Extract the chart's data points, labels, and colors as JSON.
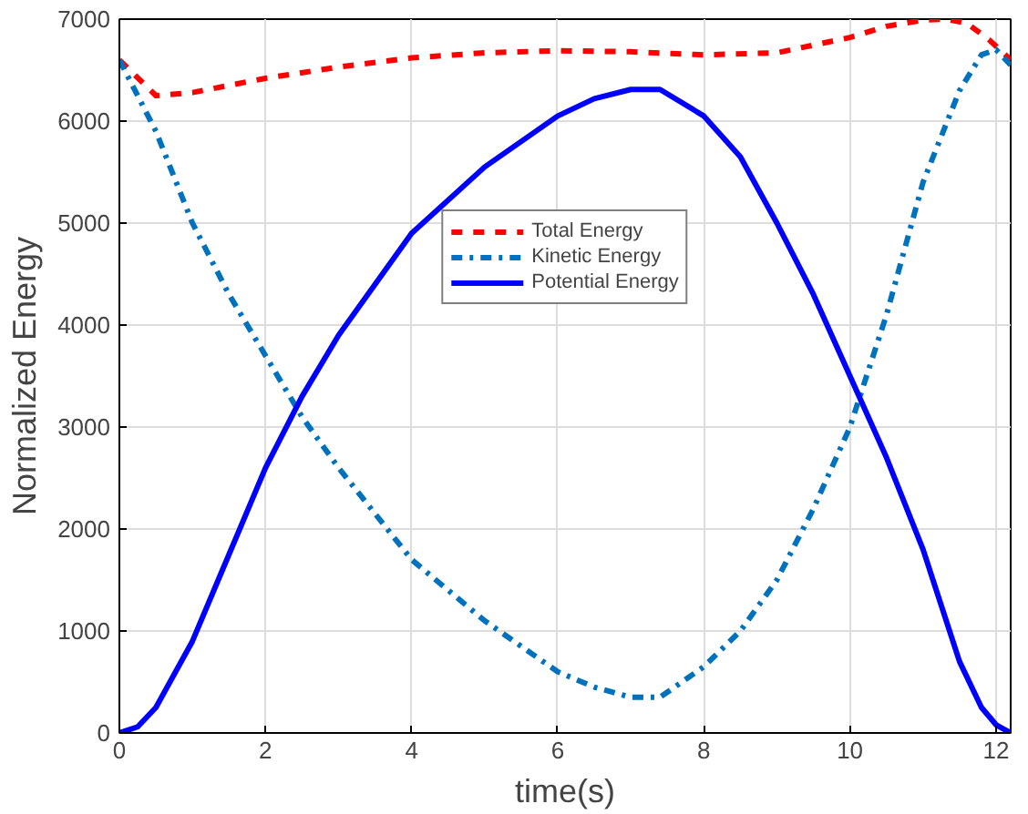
{
  "chart_data": {
    "type": "line",
    "xlabel": "time(s)",
    "ylabel": "Normalized Energy",
    "xlim": [
      0,
      12.2
    ],
    "ylim": [
      0,
      7000
    ],
    "xticks": [
      0,
      2,
      4,
      6,
      8,
      10,
      12
    ],
    "yticks": [
      0,
      1000,
      2000,
      3000,
      4000,
      5000,
      6000,
      7000
    ],
    "grid": true,
    "legend": "top",
    "series": [
      {
        "name": "Total Energy",
        "color": "#ff0000",
        "line_style": "dashed",
        "x": [
          0,
          0.5,
          1,
          2,
          3,
          4,
          5,
          6,
          7,
          8,
          9,
          10,
          10.5,
          11,
          11.3,
          11.6,
          11.9,
          12.2
        ],
        "values": [
          6600,
          6250,
          6280,
          6420,
          6530,
          6620,
          6670,
          6690,
          6680,
          6650,
          6670,
          6820,
          6930,
          6990,
          7000,
          6960,
          6800,
          6600
        ]
      },
      {
        "name": "Kinetic Energy",
        "color": "#0072bd",
        "line_style": "dashdot",
        "x": [
          0,
          0.5,
          1,
          1.5,
          2,
          2.5,
          3,
          4,
          5,
          6,
          6.5,
          7,
          7.4,
          8,
          8.5,
          9,
          9.5,
          10,
          10.5,
          11,
          11.5,
          11.8,
          12,
          12.2
        ],
        "values": [
          6600,
          5900,
          5000,
          4300,
          3700,
          3100,
          2600,
          1700,
          1100,
          600,
          450,
          350,
          350,
          650,
          1000,
          1500,
          2200,
          3000,
          4100,
          5400,
          6300,
          6650,
          6700,
          6550
        ]
      },
      {
        "name": "Potential Energy",
        "color": "#0000ff",
        "line_style": "solid",
        "x": [
          0,
          0.25,
          0.5,
          1,
          1.5,
          2,
          2.5,
          3,
          4,
          5,
          6,
          6.5,
          7,
          7.4,
          8,
          8.5,
          9,
          9.5,
          10,
          10.5,
          11,
          11.5,
          11.8,
          12,
          12.2
        ],
        "values": [
          0,
          60,
          250,
          900,
          1750,
          2600,
          3300,
          3900,
          4900,
          5550,
          6050,
          6220,
          6310,
          6310,
          6050,
          5650,
          5000,
          4300,
          3500,
          2700,
          1800,
          700,
          250,
          80,
          0
        ]
      }
    ]
  }
}
